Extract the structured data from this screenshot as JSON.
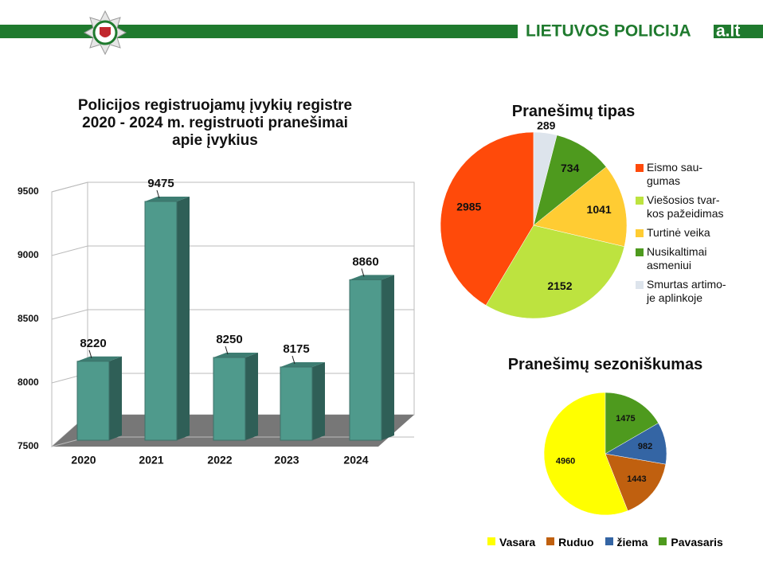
{
  "header": {
    "brand": "LIETUVOS POLICIJA",
    "watermark": "a.lt"
  },
  "chart_data": [
    {
      "type": "bar3d",
      "title": "Policijos registruojamų įvykių registre\n2020 - 2024 m. registruoti pranešimai\napie įvykius",
      "categories": [
        "2020",
        "2021",
        "2022",
        "2023",
        "2024"
      ],
      "values": [
        8220,
        9475,
        8250,
        8175,
        8860
      ],
      "color": "#4f9a8c",
      "ylim": [
        7500,
        9500
      ],
      "yticks": [
        7500,
        8000,
        8500,
        9000,
        9500
      ],
      "grid": true
    },
    {
      "type": "pie",
      "title": "Pranešimų tipas",
      "legend": "right",
      "categories": [
        "Eismo sau-\ngumas",
        "Viešosios tvar-\nkos pažeidimas",
        "Turtinė veika",
        "Nusikaltimai\nasmeniui",
        "Smurtas artimo-\nje aplinkoje"
      ],
      "values": [
        2985,
        2152,
        1041,
        734,
        289
      ],
      "colors": [
        "#ff4a0a",
        "#bde33f",
        "#ffcc33",
        "#4e9a1e",
        "#dde4ec"
      ]
    },
    {
      "type": "pie",
      "title": "Pranešimų sezoniškumas",
      "legend": "bottom",
      "categories": [
        "Vasara",
        "Ruduo",
        "žiema",
        "Pavasaris"
      ],
      "values": [
        4960,
        1443,
        982,
        1475
      ],
      "colors": [
        "#ffff00",
        "#c0600f",
        "#3465a4",
        "#4e9a1e"
      ]
    }
  ]
}
